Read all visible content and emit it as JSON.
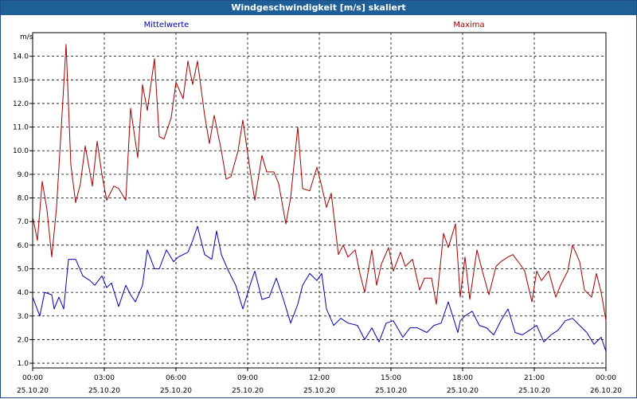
{
  "window": {
    "title": "Windgeschwindigkeit [m/s] skaliert"
  },
  "chart_data": {
    "type": "line",
    "title": "Windgeschwindigkeit [m/s] skaliert",
    "ylabel": "m/s",
    "xlabel": "",
    "ylim": [
      0.8,
      15.0
    ],
    "xlim_hours": [
      0,
      24
    ],
    "grid": true,
    "colors": {
      "Mittelwerte": "#0000b4",
      "Maxima": "#a00000"
    },
    "y_ticks": [
      "1.0",
      "2.0",
      "3.0",
      "4.0",
      "5.0",
      "6.0",
      "7.0",
      "8.0",
      "9.0",
      "10.0",
      "11.0",
      "12.0",
      "13.0",
      "14.0"
    ],
    "x_ticks": [
      {
        "time": "00:00",
        "date": "25.10.20"
      },
      {
        "time": "03:00",
        "date": "25.10.20"
      },
      {
        "time": "06:00",
        "date": "25.10.20"
      },
      {
        "time": "09:00",
        "date": "25.10.20"
      },
      {
        "time": "12:00",
        "date": "25.10.20"
      },
      {
        "time": "15:00",
        "date": "25.10.20"
      },
      {
        "time": "18:00",
        "date": "25.10.20"
      },
      {
        "time": "21:00",
        "date": "25.10.20"
      },
      {
        "time": "00:00",
        "date": "26.10.20"
      }
    ],
    "series": [
      {
        "name": "Mittelwerte",
        "x": [
          0,
          0.3,
          0.5,
          0.8,
          0.9,
          1.1,
          1.3,
          1.5,
          1.8,
          2.1,
          2.4,
          2.6,
          2.9,
          3.1,
          3.3,
          3.6,
          3.9,
          4.1,
          4.3,
          4.6,
          4.8,
          5.1,
          5.3,
          5.6,
          5.9,
          6.1,
          6.5,
          6.7,
          6.9,
          7.2,
          7.5,
          7.7,
          7.9,
          8.2,
          8.5,
          8.8,
          9.1,
          9.3,
          9.6,
          9.9,
          10.2,
          10.5,
          10.8,
          11.1,
          11.3,
          11.6,
          11.9,
          12.1,
          12.3,
          12.6,
          12.9,
          13.2,
          13.6,
          13.9,
          14.2,
          14.5,
          14.8,
          15.1,
          15.5,
          15.8,
          16.1,
          16.5,
          16.8,
          17.1,
          17.4,
          17.8,
          17.9,
          18.1,
          18.4,
          18.7,
          19,
          19.3,
          19.6,
          19.9,
          20.2,
          20.5,
          20.8,
          21.1,
          21.4,
          21.7,
          22,
          22.3,
          22.6,
          22.9,
          23.2,
          23.5,
          23.8,
          24
        ],
        "values": [
          3.8,
          3.0,
          4.0,
          3.9,
          3.3,
          3.8,
          3.3,
          5.4,
          5.4,
          4.7,
          4.5,
          4.3,
          4.7,
          4.2,
          4.4,
          3.4,
          4.3,
          3.9,
          3.6,
          4.3,
          5.8,
          5.0,
          5.0,
          5.8,
          5.3,
          5.5,
          5.7,
          6.2,
          6.8,
          5.6,
          5.4,
          6.6,
          5.6,
          4.9,
          4.3,
          3.3,
          4.3,
          4.9,
          3.7,
          3.8,
          4.6,
          3.7,
          2.7,
          3.5,
          4.3,
          4.8,
          4.5,
          4.8,
          3.3,
          2.6,
          2.9,
          2.7,
          2.6,
          2.0,
          2.5,
          1.9,
          2.7,
          2.8,
          2.1,
          2.5,
          2.5,
          2.3,
          2.6,
          2.7,
          3.6,
          2.3,
          2.8,
          3.0,
          3.2,
          2.6,
          2.5,
          2.2,
          2.8,
          3.3,
          2.3,
          2.2,
          2.4,
          2.6,
          1.9,
          2.2,
          2.4,
          2.8,
          2.9,
          2.6,
          2.3,
          1.8,
          2.1,
          1.5
        ]
      },
      {
        "name": "Maxima",
        "x": [
          0,
          0.2,
          0.4,
          0.6,
          0.8,
          1,
          1.2,
          1.4,
          1.6,
          1.8,
          2,
          2.2,
          2.5,
          2.7,
          2.9,
          3.1,
          3.4,
          3.6,
          3.9,
          4.1,
          4.4,
          4.6,
          4.8,
          5.1,
          5.3,
          5.5,
          5.8,
          6,
          6.3,
          6.5,
          6.7,
          6.9,
          7.2,
          7.4,
          7.6,
          7.9,
          8.1,
          8.3,
          8.6,
          8.8,
          9.1,
          9.3,
          9.6,
          9.8,
          10.1,
          10.3,
          10.6,
          10.8,
          11.1,
          11.3,
          11.6,
          11.9,
          12.1,
          12.3,
          12.5,
          12.8,
          13,
          13.2,
          13.5,
          13.7,
          13.9,
          14.2,
          14.4,
          14.6,
          14.9,
          15.1,
          15.4,
          15.6,
          15.9,
          16.2,
          16.4,
          16.7,
          16.9,
          17.2,
          17.4,
          17.7,
          17.9,
          18.1,
          18.3,
          18.6,
          18.8,
          19.1,
          19.4,
          19.6,
          19.9,
          20.1,
          20.4,
          20.6,
          20.9,
          21.1,
          21.3,
          21.6,
          21.9,
          22.1,
          22.4,
          22.6,
          22.9,
          23.1,
          23.4,
          23.6,
          23.8,
          24
        ],
        "values": [
          7.2,
          6.2,
          8.7,
          7.5,
          5.5,
          7.6,
          11.0,
          14.5,
          9.4,
          7.8,
          8.6,
          10.2,
          8.5,
          10.4,
          9.0,
          7.9,
          8.5,
          8.4,
          7.9,
          11.8,
          9.7,
          12.8,
          11.7,
          13.9,
          10.6,
          10.5,
          11.4,
          12.9,
          12.2,
          13.8,
          12.8,
          13.8,
          11.5,
          10.3,
          11.5,
          10.0,
          8.8,
          8.9,
          10.0,
          11.3,
          9.2,
          7.9,
          9.8,
          9.1,
          9.1,
          8.6,
          6.9,
          8.0,
          11.0,
          8.4,
          8.3,
          9.3,
          8.5,
          7.6,
          8.2,
          5.6,
          6.0,
          5.5,
          5.8,
          4.8,
          4.0,
          5.8,
          4.3,
          5.2,
          5.9,
          4.9,
          5.7,
          5.1,
          5.4,
          4.1,
          4.6,
          4.6,
          3.5,
          6.5,
          5.9,
          6.9,
          3.8,
          5.5,
          3.7,
          5.8,
          5.0,
          3.9,
          5.1,
          5.3,
          5.5,
          5.6,
          5.2,
          4.9,
          3.6,
          4.9,
          4.5,
          4.9,
          3.8,
          4.3,
          4.9,
          6.0,
          5.3,
          4.1,
          3.8,
          4.8,
          4.0,
          2.8
        ]
      }
    ]
  }
}
